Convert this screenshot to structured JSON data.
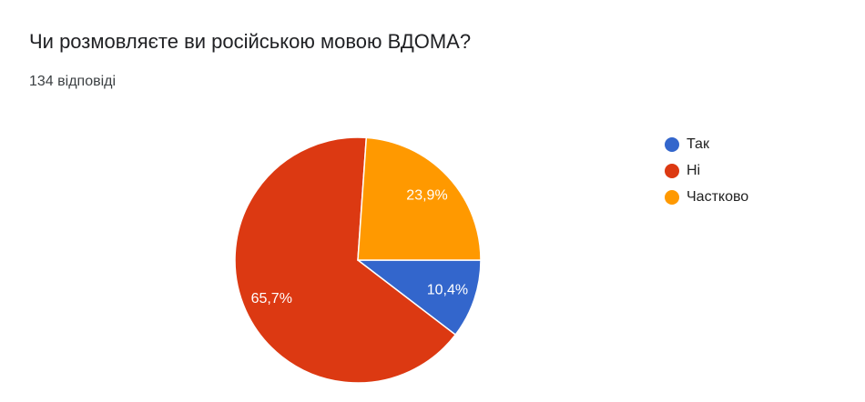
{
  "chart_data": {
    "type": "pie",
    "title": "Чи розмовляєте ви російською мовою ВДОМА?",
    "subtitle": "134 відповіді",
    "categories": [
      "Так",
      "Ні",
      "Частково"
    ],
    "values": [
      10.4,
      65.7,
      23.9
    ],
    "value_labels": [
      "10,4%",
      "65,7%",
      "23,9%"
    ],
    "colors": [
      "#3366cc",
      "#dc3912",
      "#ff9900"
    ],
    "legend": "right"
  }
}
